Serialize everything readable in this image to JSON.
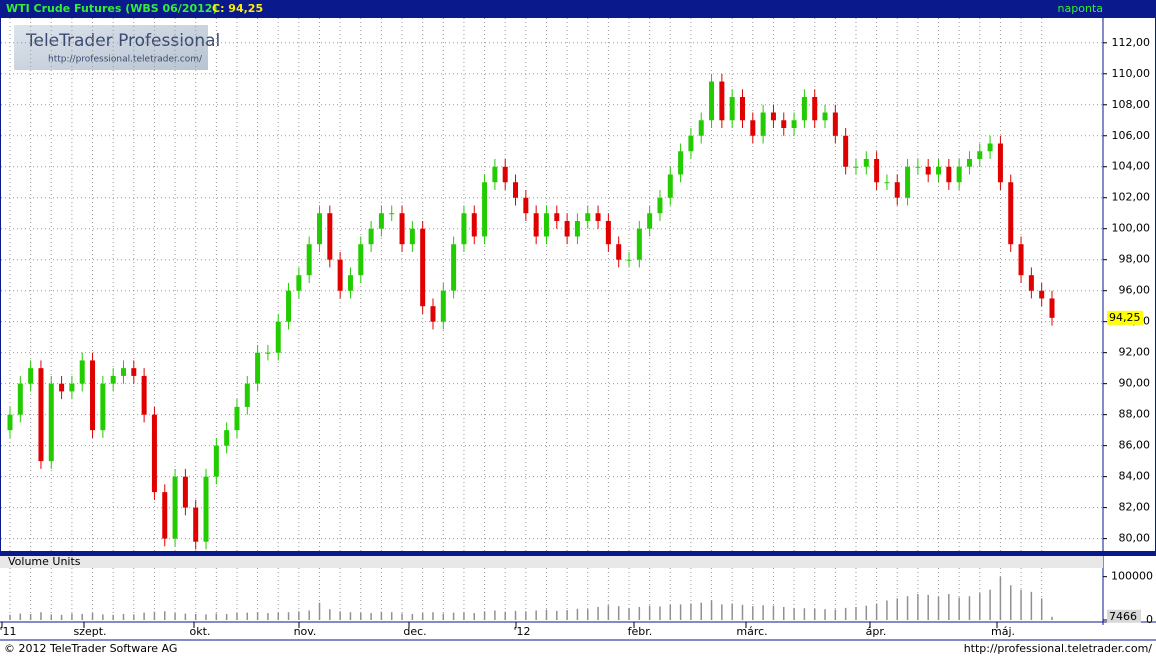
{
  "header": {
    "title": "WTI Crude Futures (WBS 06/2012)",
    "close_text": "C: 94,25",
    "period": "naponta"
  },
  "logo": {
    "name": "TeleTrader Professional",
    "url": "http://professional.teletrader.com/"
  },
  "footer": {
    "copyright": "© 2012 TeleTrader Software AG",
    "url": "http://professional.teletrader.com/"
  },
  "chart_data": {
    "type": "candlestick",
    "up_color": "#22cc00",
    "down_color": "#e00000",
    "grid": true,
    "ylim": [
      79.2,
      113.6
    ],
    "yticks": [
      {
        "value": 80,
        "label": "80,00"
      },
      {
        "value": 82,
        "label": "82,00"
      },
      {
        "value": 84,
        "label": "84,00"
      },
      {
        "value": 86,
        "label": "86,00"
      },
      {
        "value": 88,
        "label": "88,00"
      },
      {
        "value": 90,
        "label": "90,00"
      },
      {
        "value": 92,
        "label": "92,00"
      },
      {
        "value": 94,
        "label": "94,00"
      },
      {
        "value": 96,
        "label": "96,00"
      },
      {
        "value": 98,
        "label": "98,00"
      },
      {
        "value": 100,
        "label": "100,00"
      },
      {
        "value": 102,
        "label": "102,00"
      },
      {
        "value": 104,
        "label": "104,00"
      },
      {
        "value": 106,
        "label": "106,00"
      },
      {
        "value": 108,
        "label": "108,00"
      },
      {
        "value": 110,
        "label": "110,00"
      },
      {
        "value": 112,
        "label": "112,00"
      }
    ],
    "last_close_label": "94,25",
    "x_labels": [
      "'11",
      "szept.",
      "okt.",
      "nov.",
      "dec.",
      "'12",
      "febr.",
      "márc.",
      "ápr.",
      "máj."
    ],
    "candles": [
      [
        87,
        88.5,
        86.5,
        88
      ],
      [
        88,
        90.5,
        87.5,
        90
      ],
      [
        90,
        91.5,
        89.5,
        91
      ],
      [
        91,
        91.5,
        84.5,
        85
      ],
      [
        85,
        90.5,
        84.5,
        90
      ],
      [
        90,
        90.5,
        89,
        89.5
      ],
      [
        89.5,
        90.5,
        89,
        90
      ],
      [
        90,
        92,
        89.5,
        91.5
      ],
      [
        91.5,
        92,
        86.5,
        87
      ],
      [
        87,
        90.5,
        86.5,
        90
      ],
      [
        90,
        91,
        89.5,
        90.5
      ],
      [
        90.5,
        91.5,
        90,
        91
      ],
      [
        91,
        91.5,
        90,
        90.5
      ],
      [
        90.5,
        91,
        87.5,
        88
      ],
      [
        88,
        88.5,
        82.5,
        83
      ],
      [
        83,
        83.5,
        79.5,
        80
      ],
      [
        80,
        84.5,
        79.5,
        84
      ],
      [
        84,
        84.5,
        81.5,
        82
      ],
      [
        82,
        82.5,
        79.3,
        79.8
      ],
      [
        79.8,
        84.5,
        79.3,
        84
      ],
      [
        84,
        86.5,
        83.5,
        86
      ],
      [
        86,
        87.5,
        85.5,
        87
      ],
      [
        87,
        89,
        86.5,
        88.5
      ],
      [
        88.5,
        90.5,
        88,
        90
      ],
      [
        90,
        92.5,
        89.5,
        92
      ],
      [
        92,
        92.5,
        91.5,
        92
      ],
      [
        92,
        94.5,
        91.5,
        94
      ],
      [
        94,
        96.5,
        93.5,
        96
      ],
      [
        96,
        97.5,
        95.5,
        97
      ],
      [
        97,
        99.5,
        96.5,
        99
      ],
      [
        99,
        101.5,
        98.5,
        101
      ],
      [
        101,
        101.5,
        97.5,
        98
      ],
      [
        98,
        98.5,
        95.5,
        96
      ],
      [
        96,
        97.5,
        95.5,
        97
      ],
      [
        97,
        99.5,
        96.5,
        99
      ],
      [
        99,
        100.5,
        98.5,
        100
      ],
      [
        100,
        101.5,
        99.5,
        101
      ],
      [
        101,
        101.5,
        100.5,
        101
      ],
      [
        101,
        101.5,
        98.5,
        99
      ],
      [
        99,
        100.5,
        98.5,
        100
      ],
      [
        100,
        100.5,
        94.5,
        95
      ],
      [
        95,
        95.5,
        93.5,
        94
      ],
      [
        94,
        96.5,
        93.5,
        96
      ],
      [
        96,
        99.5,
        95.5,
        99
      ],
      [
        99,
        101.5,
        98.5,
        101
      ],
      [
        101,
        101.5,
        99,
        99.5
      ],
      [
        99.5,
        103.5,
        99,
        103
      ],
      [
        103,
        104.5,
        102.5,
        104
      ],
      [
        104,
        104.5,
        102.5,
        103
      ],
      [
        103,
        103.5,
        101.5,
        102
      ],
      [
        102,
        102.5,
        100.5,
        101
      ],
      [
        101,
        101.5,
        99,
        99.5
      ],
      [
        99.5,
        101.5,
        99,
        101
      ],
      [
        101,
        101.5,
        100,
        100.5
      ],
      [
        100.5,
        101,
        99,
        99.5
      ],
      [
        99.5,
        101,
        99,
        100.5
      ],
      [
        100.5,
        101.5,
        100,
        101
      ],
      [
        101,
        101.5,
        100,
        100.5
      ],
      [
        100.5,
        101,
        98.5,
        99
      ],
      [
        99,
        99.5,
        97.5,
        98
      ],
      [
        98,
        98.5,
        97.5,
        98
      ],
      [
        98,
        100.5,
        97.5,
        100
      ],
      [
        100,
        101.5,
        99.5,
        101
      ],
      [
        101,
        102.5,
        100.5,
        102
      ],
      [
        102,
        104,
        101.5,
        103.5
      ],
      [
        103.5,
        105.5,
        103,
        105
      ],
      [
        105,
        106.5,
        104.5,
        106
      ],
      [
        106,
        107.5,
        105.5,
        107
      ],
      [
        107,
        110,
        106.5,
        109.5
      ],
      [
        109.5,
        110,
        106.5,
        107
      ],
      [
        107,
        109,
        106.5,
        108.5
      ],
      [
        108.5,
        109,
        106.5,
        107
      ],
      [
        107,
        107.5,
        105.5,
        106
      ],
      [
        106,
        108,
        105.5,
        107.5
      ],
      [
        107.5,
        108,
        106.5,
        107
      ],
      [
        107,
        107.5,
        106,
        106.5
      ],
      [
        106.5,
        107.5,
        106,
        107
      ],
      [
        107,
        109,
        106.5,
        108.5
      ],
      [
        108.5,
        109,
        106.5,
        107
      ],
      [
        107,
        108,
        106.5,
        107.5
      ],
      [
        107.5,
        108,
        105.5,
        106
      ],
      [
        106,
        106.5,
        103.5,
        104
      ],
      [
        104,
        104.5,
        103.5,
        104
      ],
      [
        104,
        105,
        103.5,
        104.5
      ],
      [
        104.5,
        105,
        102.5,
        103
      ],
      [
        103,
        103.5,
        102.5,
        103
      ],
      [
        103,
        103.5,
        101.5,
        102
      ],
      [
        102,
        104.5,
        101.5,
        104
      ],
      [
        104,
        104.5,
        103.5,
        104
      ],
      [
        104,
        104.5,
        103,
        103.5
      ],
      [
        103.5,
        104.5,
        103,
        104
      ],
      [
        104,
        104.5,
        102.5,
        103
      ],
      [
        103,
        104.5,
        102.5,
        104
      ],
      [
        104,
        105,
        103.5,
        104.5
      ],
      [
        104.5,
        105.5,
        104,
        105
      ],
      [
        105,
        106,
        104.5,
        105.5
      ],
      [
        105.5,
        106,
        102.5,
        103
      ],
      [
        103,
        103.5,
        98.5,
        99
      ],
      [
        99,
        99.5,
        96.5,
        97
      ],
      [
        97,
        97.5,
        95.5,
        96
      ],
      [
        96,
        96.5,
        95,
        95.5
      ],
      [
        95.5,
        96,
        93.75,
        94.25
      ]
    ],
    "volume": {
      "title": "Volume Units",
      "color": "#909090",
      "ylim": [
        0,
        120000
      ],
      "yticks": [
        0,
        100000
      ],
      "values": [
        12000,
        15000,
        14000,
        18000,
        13000,
        12000,
        15000,
        14000,
        16000,
        13000,
        12000,
        14000,
        13000,
        17000,
        19000,
        20000,
        16000,
        15000,
        14000,
        13000,
        15000,
        14000,
        16000,
        17000,
        18000,
        16000,
        17000,
        18000,
        20000,
        22000,
        40000,
        25000,
        20000,
        18000,
        17000,
        16000,
        19000,
        18000,
        15000,
        14000,
        16000,
        18000,
        15000,
        17000,
        18000,
        16000,
        20000,
        22000,
        19000,
        21000,
        20000,
        22000,
        24000,
        21000,
        23000,
        26000,
        25000,
        30000,
        34000,
        32000,
        28000,
        30000,
        33000,
        31000,
        35000,
        36000,
        38000,
        40000,
        45000,
        36000,
        38000,
        35000,
        32000,
        34000,
        33000,
        30000,
        28000,
        27000,
        26000,
        25000,
        24000,
        28000,
        30000,
        33000,
        38000,
        45000,
        50000,
        55000,
        60000,
        58000,
        54000,
        60000,
        52000,
        55000,
        62000,
        70000,
        100000,
        80000,
        70000,
        65000,
        50000,
        7466
      ]
    }
  }
}
